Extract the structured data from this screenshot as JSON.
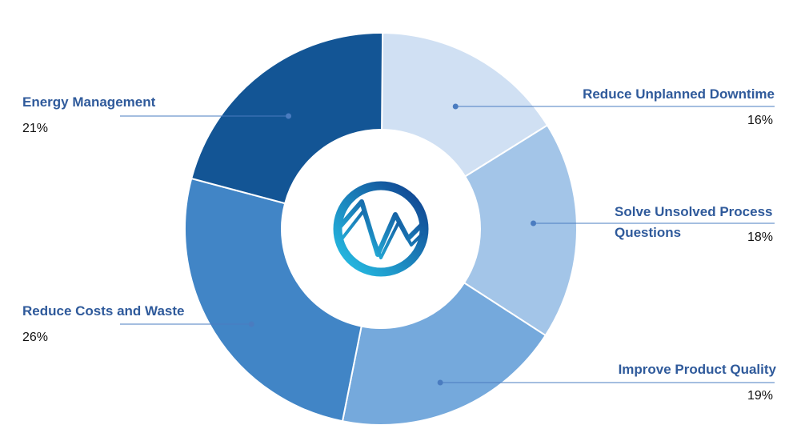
{
  "chart_data": {
    "type": "pie",
    "variant": "donut",
    "start_angle_deg": 0.5,
    "direction": "clockwise",
    "categories": [
      "Reduce Unplanned Downtime",
      "Solve Unsolved Process Questions",
      "Improve Product Quality",
      "Reduce Costs and Waste",
      "Energy Management"
    ],
    "values": [
      16,
      18,
      19,
      26,
      21
    ],
    "value_labels": [
      "16%",
      "18%",
      "19%",
      "26%",
      "21%"
    ],
    "colors": [
      "#d0e0f3",
      "#a3c5e8",
      "#75a9dc",
      "#4185c6",
      "#135595"
    ],
    "leader_line_color": "#4a7cc0",
    "legend": "callout labels around ring",
    "center_logo": "wave-mountain-logo",
    "logo_colors": [
      "#0f3d8c",
      "#27c4e8"
    ]
  }
}
